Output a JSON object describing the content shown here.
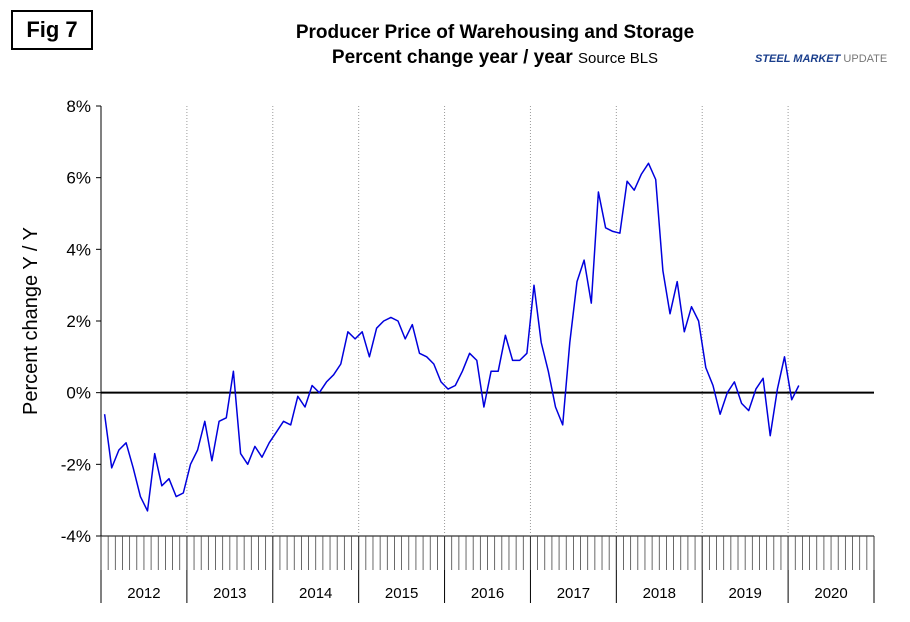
{
  "fig_label": "Fig 7",
  "title_line1": "Producer Price of Warehousing and Storage",
  "title_line2": "Percent change year / year",
  "source": "Source BLS",
  "logo": {
    "bold": "STEEL MARKET",
    "rest": " UPDATE"
  },
  "colors": {
    "line": "#0000dd",
    "axis": "#000000",
    "grid": "#9a9a9a",
    "logo": "#1a3e8c"
  },
  "chart_data": {
    "type": "line",
    "title": "Producer Price of Warehousing and Storage",
    "subtitle": "Percent change year / year",
    "xlabel": "",
    "ylabel": "Percent change Y / Y",
    "ylim": [
      -4,
      8
    ],
    "yticks": [
      -4,
      -2,
      0,
      2,
      4,
      6,
      8
    ],
    "ytick_labels": [
      "-4%",
      "-2%",
      "0%",
      "2%",
      "4%",
      "6%",
      "8%"
    ],
    "year_labels": [
      "2012",
      "2013",
      "2014",
      "2015",
      "2016",
      "2017",
      "2018",
      "2019",
      "2020"
    ],
    "grid": "vertical dotted year separators",
    "zero_line": true,
    "series": [
      {
        "start": "2012-01",
        "frequency": "monthly",
        "values": [
          -0.6,
          -2.1,
          -1.6,
          -1.4,
          -2.1,
          -2.9,
          -3.3,
          -1.7,
          -2.6,
          -2.4,
          -2.9,
          -2.8,
          -2.0,
          -1.6,
          -0.8,
          -1.9,
          -0.8,
          -0.7,
          0.6,
          -1.7,
          -2.0,
          -1.5,
          -1.8,
          -1.4,
          -1.1,
          -0.8,
          -0.9,
          -0.1,
          -0.4,
          0.2,
          0.0,
          0.3,
          0.5,
          0.8,
          1.7,
          1.5,
          1.7,
          1.0,
          1.8,
          2.0,
          2.1,
          2.0,
          1.5,
          1.9,
          1.1,
          1.0,
          0.8,
          0.3,
          0.1,
          0.2,
          0.6,
          1.1,
          0.9,
          -0.4,
          0.6,
          0.6,
          1.6,
          0.9,
          0.9,
          1.1,
          3.0,
          1.4,
          0.6,
          -0.4,
          -0.9,
          1.4,
          3.1,
          3.7,
          2.5,
          5.6,
          4.6,
          4.5,
          4.45,
          5.9,
          5.65,
          6.1,
          6.4,
          5.95,
          3.4,
          2.2,
          3.1,
          1.7,
          2.4,
          2.0,
          0.7,
          0.2,
          -0.6,
          -0.0,
          0.3,
          -0.3,
          -0.5,
          0.1,
          0.4,
          -1.2,
          0.1,
          1.0,
          -0.2,
          0.2
        ]
      }
    ]
  }
}
